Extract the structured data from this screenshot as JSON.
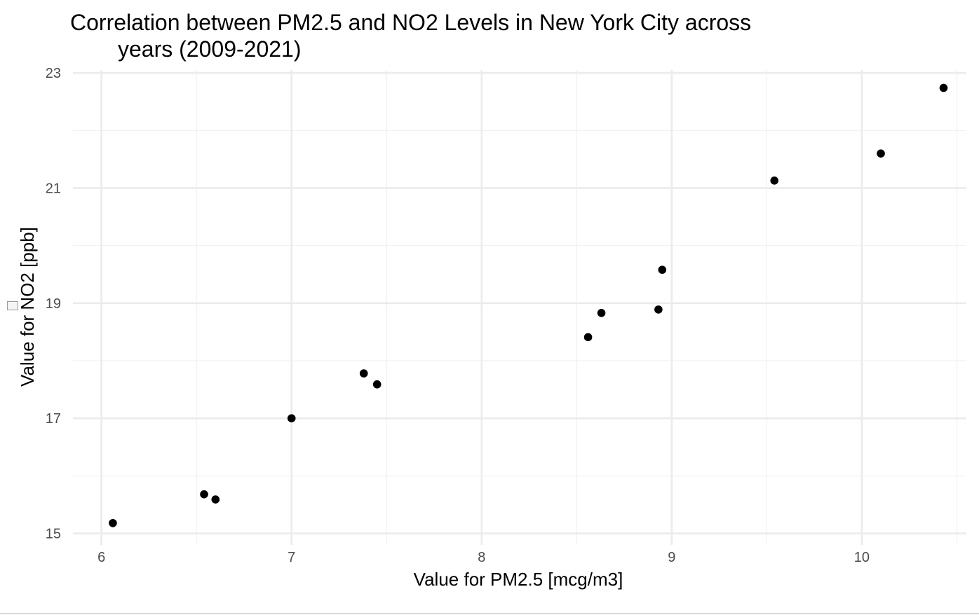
{
  "chart_data": {
    "type": "scatter",
    "title_lines": [
      "Correlation between PM2.5 and NO2 Levels in New York City across",
      "years (2009-2021)"
    ],
    "xlabel": "Value for PM2.5 [mcg/m3]",
    "ylabel": "Value for NO2 [ppb]",
    "xlim": [
      5.85,
      10.55
    ],
    "ylim": [
      14.8,
      23.05
    ],
    "x_ticks": [
      6,
      7,
      8,
      9,
      10
    ],
    "x_tick_labels": [
      "6",
      "7",
      "8",
      "9",
      "10"
    ],
    "y_ticks": [
      15,
      17,
      19,
      21,
      23
    ],
    "y_tick_labels": [
      "15",
      "17",
      "19",
      "21",
      "23"
    ],
    "x_minor_ticks": [
      6.5,
      7.5,
      8.5,
      9.5,
      10.5
    ],
    "y_minor_ticks": [
      16,
      18,
      20,
      22
    ],
    "grid": true,
    "legend": "none",
    "point_color": "#000000",
    "points": [
      {
        "x": 6.06,
        "y": 15.18
      },
      {
        "x": 6.54,
        "y": 15.68
      },
      {
        "x": 6.6,
        "y": 15.59
      },
      {
        "x": 7.0,
        "y": 17.0
      },
      {
        "x": 7.38,
        "y": 17.78
      },
      {
        "x": 7.45,
        "y": 17.59
      },
      {
        "x": 8.56,
        "y": 18.41
      },
      {
        "x": 8.63,
        "y": 18.83
      },
      {
        "x": 8.93,
        "y": 18.89
      },
      {
        "x": 8.95,
        "y": 19.58
      },
      {
        "x": 9.54,
        "y": 21.13
      },
      {
        "x": 10.1,
        "y": 21.6
      },
      {
        "x": 10.43,
        "y": 22.74
      }
    ]
  }
}
